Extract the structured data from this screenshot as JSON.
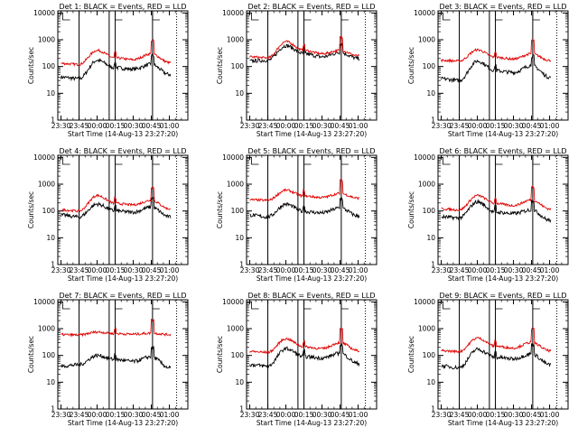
{
  "figure": {
    "series_colors": {
      "Events": "#000000",
      "LLD": "#e00000"
    }
  },
  "chart_data": [
    {
      "type": "line",
      "title": "Det 1: BLACK = Events, RED = LLD",
      "xlabel": "Start Time (14-Aug-13 23:27:20)",
      "ylabel": "Counts/sec",
      "x_ticks": [
        "23:30",
        "23:45",
        "00:00",
        "00:15",
        "00:30",
        "00:45",
        "01:00"
      ],
      "y_ticks": [
        "1",
        "10",
        "100",
        "1000",
        "10000"
      ],
      "y_scale": "log",
      "ylim": [
        1,
        12000
      ],
      "x": [
        "23:30",
        "23:45",
        "00:00",
        "00:15",
        "00:30",
        "00:45",
        "01:00"
      ],
      "series": [
        {
          "name": "Events",
          "values": [
            40,
            35,
            170,
            90,
            80,
            120,
            50
          ]
        },
        {
          "name": "LLD",
          "values": [
            130,
            120,
            400,
            210,
            180,
            300,
            140
          ]
        }
      ],
      "vlines_solid": [
        "23:45",
        "00:10",
        "00:15",
        "00:46"
      ],
      "vlines_dotted": [
        "01:06"
      ]
    },
    {
      "type": "line",
      "title": "Det 2: BLACK = Events, RED = LLD",
      "xlabel": "Start Time (14-Aug-13 23:27:20)",
      "ylabel": "Counts/sec",
      "x_ticks": [
        "23:30",
        "23:45",
        "00:00",
        "00:15",
        "00:30",
        "00:45",
        "01:00"
      ],
      "y_ticks": [
        "1",
        "10",
        "100",
        "1000",
        "10000"
      ],
      "y_scale": "log",
      "ylim": [
        1,
        12000
      ],
      "x": [
        "23:30",
        "23:45",
        "00:00",
        "00:15",
        "00:30",
        "00:45",
        "01:00"
      ],
      "series": [
        {
          "name": "Events",
          "values": [
            160,
            170,
            600,
            300,
            230,
            330,
            200
          ]
        },
        {
          "name": "LLD",
          "values": [
            230,
            210,
            850,
            400,
            300,
            400,
            250
          ]
        }
      ],
      "vlines_solid": [
        "23:45",
        "00:10",
        "00:15",
        "00:46"
      ],
      "vlines_dotted": [
        "01:06"
      ]
    },
    {
      "type": "line",
      "title": "Det 3: BLACK = Events, RED = LLD",
      "xlabel": "Start Time (14-Aug-13 23:27:20)",
      "ylabel": "Counts/sec",
      "x_ticks": [
        "23:30",
        "23:45",
        "00:00",
        "00:15",
        "00:30",
        "00:45",
        "01:00"
      ],
      "y_ticks": [
        "1",
        "10",
        "100",
        "1000",
        "10000"
      ],
      "y_scale": "log",
      "ylim": [
        1,
        12000
      ],
      "x": [
        "23:30",
        "23:45",
        "00:00",
        "00:15",
        "00:30",
        "00:45",
        "01:00"
      ],
      "series": [
        {
          "name": "Events",
          "values": [
            35,
            30,
            160,
            70,
            60,
            110,
            40
          ]
        },
        {
          "name": "LLD",
          "values": [
            170,
            160,
            420,
            220,
            190,
            300,
            170
          ]
        }
      ],
      "vlines_solid": [
        "23:45",
        "00:10",
        "00:15",
        "00:46"
      ],
      "vlines_dotted": [
        "01:06"
      ]
    },
    {
      "type": "line",
      "title": "Det 4: BLACK = Events, RED = LLD",
      "xlabel": "Start Time (14-Aug-13 23:27:20)",
      "ylabel": "Counts/sec",
      "x_ticks": [
        "23:30",
        "23:45",
        "00:00",
        "00:15",
        "00:30",
        "00:45",
        "01:00"
      ],
      "y_ticks": [
        "1",
        "10",
        "100",
        "1000",
        "10000"
      ],
      "y_scale": "log",
      "ylim": [
        1,
        12000
      ],
      "x": [
        "23:30",
        "23:45",
        "00:00",
        "00:15",
        "00:30",
        "00:45",
        "01:00"
      ],
      "series": [
        {
          "name": "Events",
          "values": [
            70,
            60,
            180,
            100,
            90,
            140,
            60
          ]
        },
        {
          "name": "LLD",
          "values": [
            110,
            100,
            380,
            190,
            170,
            250,
            120
          ]
        }
      ],
      "vlines_solid": [
        "23:45",
        "00:10",
        "00:15",
        "00:46"
      ],
      "vlines_dotted": [
        "01:06"
      ]
    },
    {
      "type": "line",
      "title": "Det 5: BLACK = Events, RED = LLD",
      "xlabel": "Start Time (14-Aug-13 23:27:20)",
      "ylabel": "Counts/sec",
      "x_ticks": [
        "23:30",
        "23:45",
        "00:00",
        "00:15",
        "00:30",
        "00:45",
        "01:00"
      ],
      "y_ticks": [
        "1",
        "10",
        "100",
        "1000",
        "10000"
      ],
      "y_scale": "log",
      "ylim": [
        1,
        12000
      ],
      "x": [
        "23:30",
        "23:45",
        "00:00",
        "00:15",
        "00:30",
        "00:45",
        "01:00"
      ],
      "series": [
        {
          "name": "Events",
          "values": [
            70,
            60,
            180,
            95,
            85,
            130,
            65
          ]
        },
        {
          "name": "LLD",
          "values": [
            260,
            250,
            600,
            360,
            320,
            450,
            300
          ]
        }
      ],
      "vlines_solid": [
        "23:45",
        "00:10",
        "00:15",
        "00:46"
      ],
      "vlines_dotted": [
        "01:06"
      ]
    },
    {
      "type": "line",
      "title": "Det 6: BLACK = Events, RED = LLD",
      "xlabel": "Start Time (14-Aug-13 23:27:20)",
      "ylabel": "Counts/sec",
      "x_ticks": [
        "23:30",
        "23:45",
        "00:00",
        "00:15",
        "00:30",
        "00:45",
        "01:00"
      ],
      "y_ticks": [
        "1",
        "10",
        "100",
        "1000",
        "10000"
      ],
      "y_scale": "log",
      "ylim": [
        1,
        12000
      ],
      "x": [
        "23:30",
        "23:45",
        "00:00",
        "00:15",
        "00:30",
        "00:45",
        "01:00"
      ],
      "series": [
        {
          "name": "Events",
          "values": [
            60,
            55,
            220,
            90,
            80,
            110,
            45
          ]
        },
        {
          "name": "LLD",
          "values": [
            120,
            110,
            380,
            190,
            160,
            260,
            120
          ]
        }
      ],
      "vlines_solid": [
        "23:45",
        "00:10",
        "00:15",
        "00:46"
      ],
      "vlines_dotted": [
        "01:06"
      ]
    },
    {
      "type": "line",
      "title": "Det 7: BLACK = Events, RED = LLD",
      "xlabel": "Start Time (14-Aug-13 23:27:20)",
      "ylabel": "Counts/sec",
      "x_ticks": [
        "23:30",
        "23:45",
        "00:00",
        "00:15",
        "00:30",
        "00:45",
        "01:00"
      ],
      "y_ticks": [
        "1",
        "10",
        "100",
        "1000",
        "10000"
      ],
      "y_scale": "log",
      "ylim": [
        1,
        12000
      ],
      "x": [
        "23:30",
        "23:45",
        "00:00",
        "00:15",
        "00:30",
        "00:45",
        "01:00"
      ],
      "series": [
        {
          "name": "Events",
          "values": [
            40,
            45,
            100,
            70,
            60,
            90,
            35
          ]
        },
        {
          "name": "LLD",
          "values": [
            600,
            580,
            750,
            650,
            620,
            680,
            600
          ]
        }
      ],
      "vlines_solid": [
        "23:45",
        "00:10",
        "00:15",
        "00:46"
      ],
      "vlines_dotted": [
        "01:06"
      ]
    },
    {
      "type": "line",
      "title": "Det 8: BLACK = Events, RED = LLD",
      "xlabel": "Start Time (14-Aug-13 23:27:20)",
      "ylabel": "Counts/sec",
      "x_ticks": [
        "23:30",
        "23:45",
        "00:00",
        "00:15",
        "00:30",
        "00:45",
        "01:00"
      ],
      "y_ticks": [
        "1",
        "10",
        "100",
        "1000",
        "10000"
      ],
      "y_scale": "log",
      "ylim": [
        1,
        12000
      ],
      "x": [
        "23:30",
        "23:45",
        "00:00",
        "00:15",
        "00:30",
        "00:45",
        "01:00"
      ],
      "series": [
        {
          "name": "Events",
          "values": [
            45,
            40,
            180,
            90,
            80,
            120,
            50
          ]
        },
        {
          "name": "LLD",
          "values": [
            140,
            130,
            420,
            210,
            180,
            300,
            150
          ]
        }
      ],
      "vlines_solid": [
        "23:45",
        "00:10",
        "00:15",
        "00:46"
      ],
      "vlines_dotted": [
        "01:06"
      ]
    },
    {
      "type": "line",
      "title": "Det 9: BLACK = Events, RED = LLD",
      "xlabel": "Start Time (14-Aug-13 23:27:20)",
      "ylabel": "Counts/sec",
      "x_ticks": [
        "23:30",
        "23:45",
        "00:00",
        "00:15",
        "00:30",
        "00:45",
        "01:00"
      ],
      "y_ticks": [
        "1",
        "10",
        "100",
        "1000",
        "10000"
      ],
      "y_scale": "log",
      "ylim": [
        1,
        12000
      ],
      "x": [
        "23:30",
        "23:45",
        "00:00",
        "00:15",
        "00:30",
        "00:45",
        "01:00"
      ],
      "series": [
        {
          "name": "Events",
          "values": [
            40,
            35,
            170,
            85,
            75,
            115,
            45
          ]
        },
        {
          "name": "LLD",
          "values": [
            150,
            140,
            450,
            220,
            190,
            310,
            150
          ]
        }
      ],
      "vlines_solid": [
        "23:45",
        "00:10",
        "00:15",
        "00:46"
      ],
      "vlines_dotted": [
        "01:06"
      ]
    }
  ]
}
